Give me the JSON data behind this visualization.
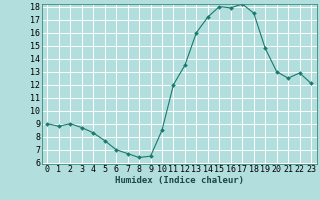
{
  "x": [
    0,
    1,
    2,
    3,
    4,
    5,
    6,
    7,
    8,
    9,
    10,
    11,
    12,
    13,
    14,
    15,
    16,
    17,
    18,
    19,
    20,
    21,
    22,
    23
  ],
  "y": [
    9.0,
    8.8,
    9.0,
    8.7,
    8.3,
    7.7,
    7.0,
    6.7,
    6.4,
    6.5,
    8.5,
    12.0,
    13.5,
    16.0,
    17.2,
    18.0,
    17.9,
    18.2,
    17.5,
    14.8,
    13.0,
    12.5,
    12.9,
    12.1
  ],
  "line_color": "#1a7a6e",
  "marker_color": "#1a7a6e",
  "bg_color": "#b2dede",
  "grid_color": "#ffffff",
  "xlabel": "Humidex (Indice chaleur)",
  "ylim_min": 6,
  "ylim_max": 18,
  "xlim_min": -0.5,
  "xlim_max": 23.5,
  "yticks": [
    6,
    7,
    8,
    9,
    10,
    11,
    12,
    13,
    14,
    15,
    16,
    17,
    18
  ],
  "xticks": [
    0,
    1,
    2,
    3,
    4,
    5,
    6,
    7,
    8,
    9,
    10,
    11,
    12,
    13,
    14,
    15,
    16,
    17,
    18,
    19,
    20,
    21,
    22,
    23
  ],
  "xlabel_fontsize": 6.5,
  "tick_fontsize": 6.0,
  "linewidth": 0.8,
  "markersize": 2.0
}
